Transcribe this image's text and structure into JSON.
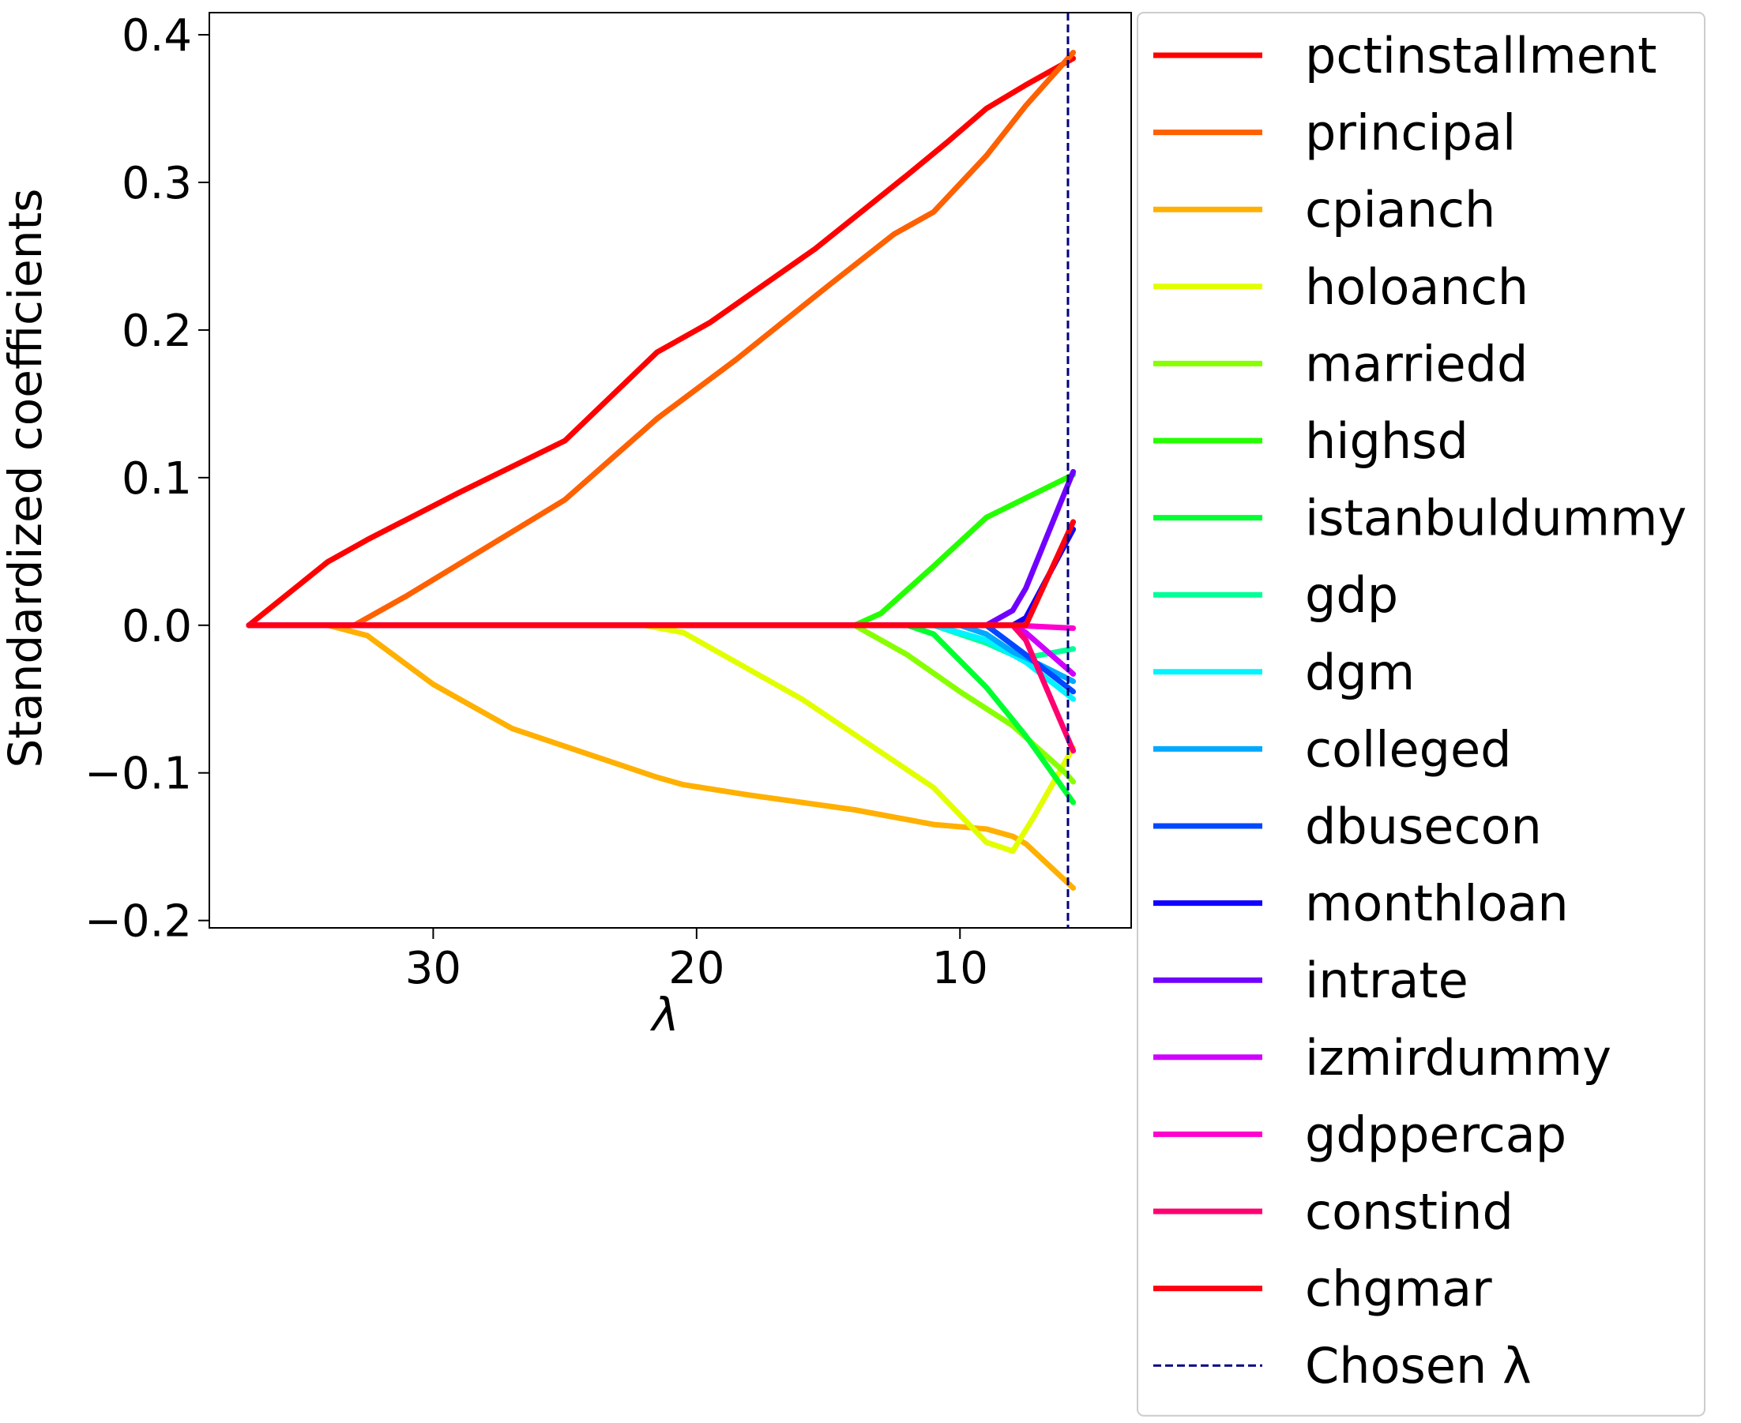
{
  "chart_data": {
    "type": "line",
    "title": "",
    "xlabel": "λ",
    "ylabel": "Standardized coefficients",
    "xlim": [
      38.5,
      3.5
    ],
    "ylim": [
      -0.205,
      0.415
    ],
    "x_reversed": true,
    "xticks": [
      30,
      20,
      10
    ],
    "yticks": [
      -0.2,
      -0.1,
      0.0,
      0.1,
      0.2,
      0.3,
      0.4
    ],
    "ytick_labels": [
      "−0.2",
      "−0.1",
      "0.0",
      "0.1",
      "0.2",
      "0.3",
      "0.4"
    ],
    "grid": false,
    "legend_position": "outside-right",
    "chosen_lambda": {
      "label": "Chosen λ",
      "value": 5.9,
      "color": "#000080",
      "style": "dashed"
    },
    "series": [
      {
        "name": "pctinstallment",
        "color": "#ff0000",
        "points": [
          [
            37,
            0
          ],
          [
            34,
            0.043
          ],
          [
            32.5,
            0.058
          ],
          [
            29,
            0.09
          ],
          [
            25,
            0.125
          ],
          [
            21.5,
            0.185
          ],
          [
            19.5,
            0.205
          ],
          [
            15.5,
            0.255
          ],
          [
            12,
            0.305
          ],
          [
            10.5,
            0.327
          ],
          [
            9,
            0.35
          ],
          [
            7.5,
            0.366
          ],
          [
            5.7,
            0.384
          ]
        ]
      },
      {
        "name": "principal",
        "color": "#ff6000",
        "points": [
          [
            37,
            0
          ],
          [
            33,
            0
          ],
          [
            31,
            0.02
          ],
          [
            25,
            0.085
          ],
          [
            21.5,
            0.14
          ],
          [
            18.5,
            0.18
          ],
          [
            15,
            0.23
          ],
          [
            12.5,
            0.265
          ],
          [
            11,
            0.28
          ],
          [
            9,
            0.318
          ],
          [
            7.5,
            0.352
          ],
          [
            5.7,
            0.388
          ]
        ]
      },
      {
        "name": "cpianch",
        "color": "#ffb000",
        "points": [
          [
            37,
            0
          ],
          [
            34,
            0
          ],
          [
            32.5,
            -0.007
          ],
          [
            30,
            -0.04
          ],
          [
            27,
            -0.07
          ],
          [
            24,
            -0.088
          ],
          [
            21.5,
            -0.103
          ],
          [
            20.5,
            -0.108
          ],
          [
            18,
            -0.115
          ],
          [
            14,
            -0.125
          ],
          [
            11,
            -0.135
          ],
          [
            9,
            -0.138
          ],
          [
            8,
            -0.143
          ],
          [
            7.5,
            -0.148
          ],
          [
            5.7,
            -0.178
          ]
        ]
      },
      {
        "name": "holoanch",
        "color": "#e2ff00",
        "points": [
          [
            37,
            0
          ],
          [
            22,
            0
          ],
          [
            20.5,
            -0.005
          ],
          [
            16,
            -0.05
          ],
          [
            11,
            -0.11
          ],
          [
            9,
            -0.147
          ],
          [
            8,
            -0.153
          ],
          [
            7.2,
            -0.13
          ],
          [
            5.7,
            -0.083
          ]
        ]
      },
      {
        "name": "marriedd",
        "color": "#88ff00",
        "points": [
          [
            37,
            0
          ],
          [
            14,
            0
          ],
          [
            12,
            -0.02
          ],
          [
            10,
            -0.045
          ],
          [
            8,
            -0.068
          ],
          [
            6,
            -0.1
          ],
          [
            5.7,
            -0.106
          ]
        ]
      },
      {
        "name": "highsd",
        "color": "#24ff00",
        "points": [
          [
            37,
            0
          ],
          [
            14,
            0
          ],
          [
            13,
            0.008
          ],
          [
            11,
            0.04
          ],
          [
            9,
            0.073
          ],
          [
            5.7,
            0.102
          ]
        ]
      },
      {
        "name": "istanbuldummy",
        "color": "#00ff30",
        "points": [
          [
            37,
            0
          ],
          [
            12,
            0
          ],
          [
            11,
            -0.006
          ],
          [
            9,
            -0.042
          ],
          [
            7.5,
            -0.075
          ],
          [
            5.7,
            -0.12
          ]
        ]
      },
      {
        "name": "gdp",
        "color": "#00ff98",
        "points": [
          [
            37,
            0
          ],
          [
            11,
            0
          ],
          [
            9,
            -0.012
          ],
          [
            8,
            -0.02
          ],
          [
            7.5,
            -0.022
          ],
          [
            5.7,
            -0.016
          ]
        ]
      },
      {
        "name": "dgm",
        "color": "#00f4ff",
        "points": [
          [
            37,
            0
          ],
          [
            11,
            0
          ],
          [
            9,
            -0.01
          ],
          [
            7.5,
            -0.025
          ],
          [
            5.7,
            -0.05
          ]
        ]
      },
      {
        "name": "colleged",
        "color": "#00a8ff",
        "points": [
          [
            37,
            0
          ],
          [
            10,
            0
          ],
          [
            9,
            -0.006
          ],
          [
            8,
            -0.018
          ],
          [
            7.5,
            -0.022
          ],
          [
            5.7,
            -0.038
          ]
        ]
      },
      {
        "name": "dbusecon",
        "color": "#0048ff",
        "points": [
          [
            37,
            0
          ],
          [
            9,
            0
          ],
          [
            7.5,
            -0.02
          ],
          [
            5.7,
            -0.045
          ]
        ]
      },
      {
        "name": "monthloan",
        "color": "#1000ff",
        "points": [
          [
            37,
            0
          ],
          [
            8,
            0
          ],
          [
            7.5,
            0.005
          ],
          [
            5.7,
            0.065
          ]
        ]
      },
      {
        "name": "intrate",
        "color": "#7000ff",
        "points": [
          [
            37,
            0
          ],
          [
            9,
            0
          ],
          [
            8,
            0.01
          ],
          [
            7.5,
            0.025
          ],
          [
            5.7,
            0.104
          ]
        ]
      },
      {
        "name": "izmirdummy",
        "color": "#d000ff",
        "points": [
          [
            37,
            0
          ],
          [
            8,
            0
          ],
          [
            7.5,
            -0.005
          ],
          [
            5.7,
            -0.033
          ]
        ]
      },
      {
        "name": "gdppercap",
        "color": "#ff00d0",
        "points": [
          [
            37,
            0
          ],
          [
            8,
            0
          ],
          [
            5.7,
            -0.002
          ]
        ]
      },
      {
        "name": "constind",
        "color": "#ff0070",
        "points": [
          [
            37,
            0
          ],
          [
            8,
            0
          ],
          [
            7.5,
            -0.01
          ],
          [
            5.7,
            -0.085
          ]
        ]
      },
      {
        "name": "chgmar",
        "color": "#ff0010",
        "points": [
          [
            37,
            0
          ],
          [
            7.5,
            0
          ],
          [
            5.7,
            0.07
          ]
        ]
      }
    ]
  }
}
